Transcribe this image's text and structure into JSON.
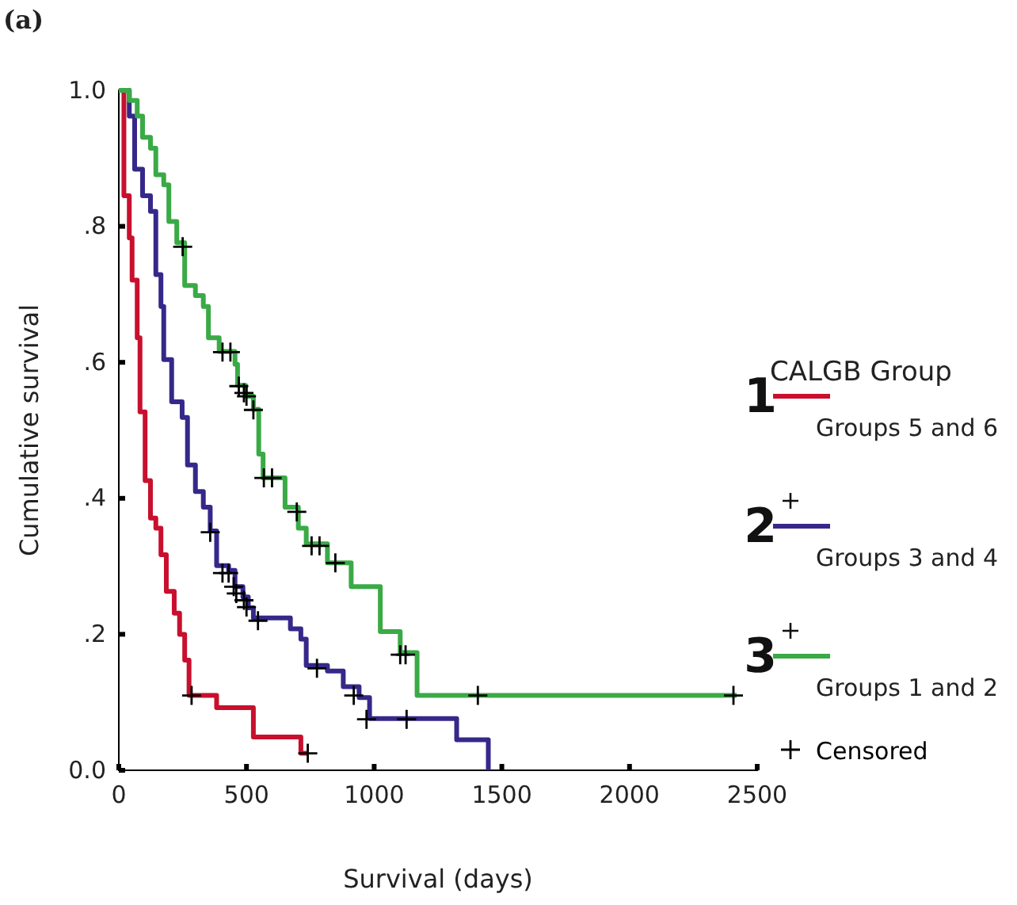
{
  "chart_data": {
    "type": "step",
    "xlabel": "Survival (days)",
    "ylabel": "Cumulative survival",
    "legend_title": "CALGB Group",
    "legend": "right",
    "grid": false,
    "xlim": [
      0,
      2500
    ],
    "xticks": [
      0,
      500,
      1000,
      1500,
      2000,
      2500
    ],
    "ylim": [
      0,
      1
    ],
    "yticks": [
      {
        "value": 0,
        "label": "0.0"
      },
      {
        "value": 0.2,
        "label": ".2"
      },
      {
        "value": 0.4,
        "label": ".4"
      },
      {
        "value": 0.6,
        "label": ".6"
      },
      {
        "value": 0.8,
        "label": ".8"
      },
      {
        "value": 1,
        "label": "1.0"
      }
    ],
    "annotations": [
      "(a)",
      "1",
      "2",
      "3"
    ],
    "series": [
      {
        "name": "Groups 5 and 6",
        "color": "#c8102e",
        "x": [
          0,
          20,
          41,
          52,
          72,
          83,
          103,
          124,
          145,
          165,
          186,
          217,
          238,
          258,
          275,
          383,
          527,
          713,
          740
        ],
        "values": [
          1,
          0.845,
          0.783,
          0.721,
          0.636,
          0.527,
          0.426,
          0.371,
          0.356,
          0.317,
          0.263,
          0.231,
          0.2,
          0.162,
          0.11,
          0.092,
          0.049,
          0.025,
          0.025
        ]
      },
      {
        "name": "Groups 3 and 4",
        "color": "#35288a",
        "x": [
          0,
          41,
          62,
          93,
          124,
          145,
          165,
          176,
          207,
          248,
          269,
          300,
          331,
          358,
          383,
          430,
          455,
          486,
          507,
          527,
          608,
          672,
          713,
          734,
          817,
          879,
          941,
          982,
          1323,
          1447
        ],
        "values": [
          1,
          0.962,
          0.884,
          0.845,
          0.822,
          0.729,
          0.682,
          0.604,
          0.542,
          0.519,
          0.449,
          0.41,
          0.387,
          0.352,
          0.301,
          0.294,
          0.27,
          0.255,
          0.239,
          0.224,
          0.224,
          0.208,
          0.193,
          0.154,
          0.146,
          0.123,
          0.107,
          0.076,
          0.045,
          0
        ]
      },
      {
        "name": "Groups 1 and 2",
        "color": "#3aaa46",
        "x": [
          0,
          41,
          72,
          93,
          124,
          145,
          176,
          196,
          227,
          258,
          300,
          331,
          351,
          393,
          455,
          465,
          496,
          527,
          548,
          565,
          651,
          703,
          734,
          817,
          910,
          1024,
          1102,
          1168,
          2420
        ],
        "values": [
          1,
          0.985,
          0.962,
          0.931,
          0.915,
          0.876,
          0.861,
          0.807,
          0.776,
          0.713,
          0.698,
          0.682,
          0.636,
          0.616,
          0.597,
          0.566,
          0.55,
          0.531,
          0.465,
          0.43,
          0.387,
          0.356,
          0.333,
          0.305,
          0.27,
          0.204,
          0.173,
          0.11,
          0.11
        ]
      },
      {
        "name": "Censored",
        "type": "scatter",
        "marker": "cross",
        "color": "#000000",
        "x": [
          285,
          740,
          358,
          406,
          430,
          450,
          460,
          490,
          500,
          545,
          776,
          920,
          970,
          1127,
          250,
          406,
          437,
          470,
          490,
          500,
          527,
          568,
          600,
          697,
          755,
          786,
          848,
          1102,
          1123,
          1406,
          2407
        ],
        "values": [
          0.11,
          0.025,
          0.35,
          0.29,
          0.29,
          0.27,
          0.26,
          0.25,
          0.24,
          0.22,
          0.15,
          0.11,
          0.075,
          0.075,
          0.77,
          0.615,
          0.615,
          0.565,
          0.555,
          0.55,
          0.53,
          0.43,
          0.43,
          0.38,
          0.33,
          0.33,
          0.305,
          0.17,
          0.17,
          0.11,
          0.11
        ]
      }
    ]
  }
}
